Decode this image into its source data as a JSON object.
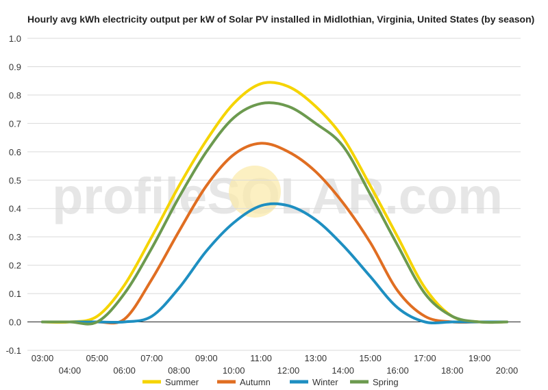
{
  "chart_data": {
    "type": "line",
    "title": "Hourly avg kWh electricity output per kW of Solar PV installed in Midlothian, Virginia, United States (by season)",
    "xlabel": "",
    "ylabel": "",
    "x": [
      "03:00",
      "04:00",
      "05:00",
      "06:00",
      "07:00",
      "08:00",
      "09:00",
      "10:00",
      "11:00",
      "12:00",
      "13:00",
      "14:00",
      "15:00",
      "16:00",
      "17:00",
      "18:00",
      "19:00",
      "20:00"
    ],
    "ylim": [
      -0.1,
      1.0
    ],
    "yticks": [
      "-0.1",
      "0.0",
      "0.1",
      "0.2",
      "0.3",
      "0.4",
      "0.5",
      "0.6",
      "0.7",
      "0.8",
      "0.9",
      "1.0"
    ],
    "grid": true,
    "legend": "bottom",
    "series": [
      {
        "name": "Summer",
        "color": "#f5d400",
        "values": [
          0,
          0,
          0.02,
          0.13,
          0.3,
          0.48,
          0.64,
          0.77,
          0.84,
          0.83,
          0.76,
          0.65,
          0.48,
          0.3,
          0.12,
          0.02,
          0,
          0
        ]
      },
      {
        "name": "Autumn",
        "color": "#e06e22",
        "values": [
          0,
          0,
          0,
          0.01,
          0.15,
          0.32,
          0.48,
          0.59,
          0.63,
          0.6,
          0.53,
          0.42,
          0.28,
          0.11,
          0.02,
          0,
          0,
          0
        ]
      },
      {
        "name": "Winter",
        "color": "#1e8fc1",
        "values": [
          0,
          0,
          0,
          0,
          0.02,
          0.12,
          0.25,
          0.35,
          0.41,
          0.41,
          0.36,
          0.27,
          0.16,
          0.05,
          0,
          0,
          0,
          0
        ]
      },
      {
        "name": "Spring",
        "color": "#6c9a4f",
        "values": [
          0,
          0,
          0,
          0.1,
          0.26,
          0.44,
          0.6,
          0.72,
          0.77,
          0.76,
          0.7,
          0.62,
          0.45,
          0.27,
          0.1,
          0.02,
          0,
          0
        ]
      }
    ]
  },
  "watermark": "profileSOLAR.com"
}
